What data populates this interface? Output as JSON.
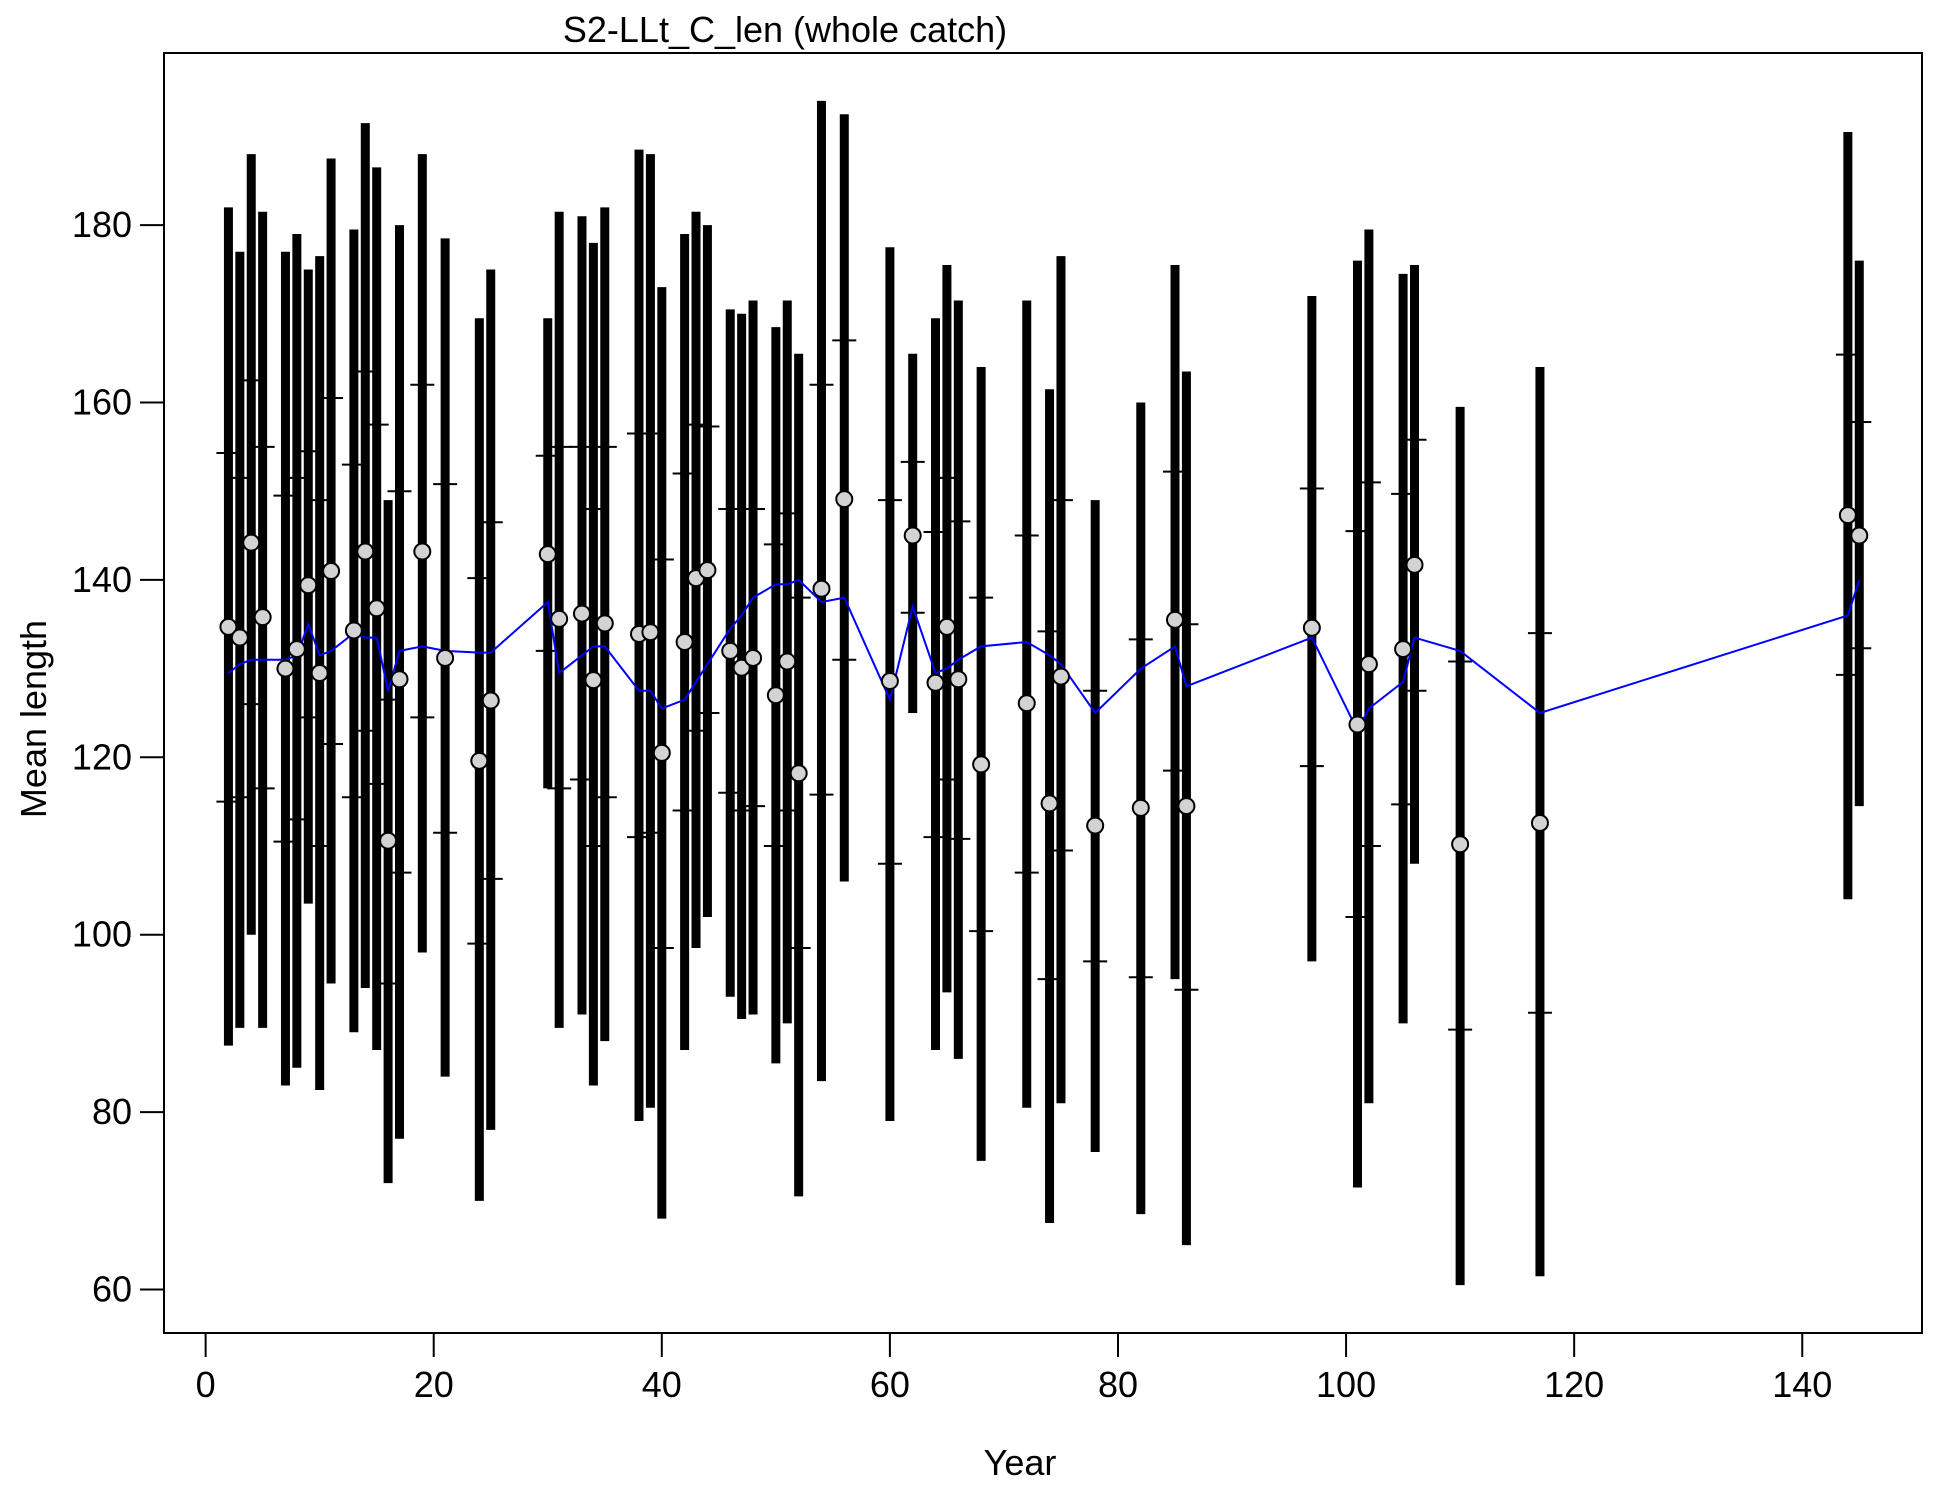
{
  "chart_data": {
    "type": "interval",
    "title": "S2-LLt_C_len (whole catch)",
    "xlabel": "Year",
    "ylabel": "Mean length",
    "x": [
      2,
      3,
      4,
      5,
      7,
      8,
      9,
      10,
      11,
      13,
      14,
      15,
      16,
      17,
      19,
      21,
      24,
      25,
      30,
      31,
      33,
      34,
      35,
      38,
      39,
      40,
      42,
      43,
      44,
      46,
      47,
      48,
      50,
      51,
      52,
      54,
      56,
      60,
      62,
      64,
      65,
      66,
      68,
      72,
      74,
      75,
      78,
      82,
      85,
      86,
      97,
      101,
      102,
      105,
      106,
      110,
      117,
      144,
      145
    ],
    "observed": [
      134.7,
      133.5,
      144.2,
      135.8,
      130,
      132.2,
      139.4,
      129.5,
      141,
      134.3,
      143.2,
      136.8,
      110.6,
      128.8,
      143.2,
      131.2,
      119.6,
      126.4,
      142.9,
      135.6,
      136.2,
      128.7,
      135.1,
      133.9,
      134.1,
      120.5,
      133,
      140.2,
      141.1,
      132,
      130.1,
      131.2,
      127,
      130.8,
      118.2,
      139,
      149.1,
      128.6,
      145,
      128.4,
      134.7,
      128.8,
      119.2,
      126.1,
      114.8,
      129.1,
      112.3,
      114.3,
      135.5,
      114.5,
      134.6,
      123.7,
      130.5,
      132.2,
      141.7,
      110.2,
      112.6,
      147.3,
      145
    ],
    "expected": [
      129.5,
      130.5,
      131,
      131,
      131,
      131.5,
      135,
      131.5,
      132,
      134,
      133.5,
      133.5,
      127.5,
      132,
      132.5,
      132,
      131.8,
      131.8,
      137.5,
      129.5,
      131.5,
      132.5,
      132.5,
      127.5,
      127.5,
      125.5,
      126.5,
      128.5,
      130.5,
      134.5,
      136,
      138,
      139.5,
      139.5,
      140,
      137.5,
      138,
      126.5,
      137,
      129.5,
      130,
      131,
      132.5,
      133,
      131.5,
      130.5,
      125,
      130,
      132.5,
      128,
      133.5,
      123,
      125.5,
      128.5,
      133.5,
      132,
      125,
      136,
      140
    ],
    "outer_lo": [
      87.5,
      89.5,
      100,
      89.5,
      83,
      85,
      103.5,
      82.5,
      94.5,
      89,
      94,
      87,
      72,
      77,
      98,
      84,
      70,
      78,
      116.5,
      89.5,
      91,
      83,
      88,
      79,
      80.5,
      68,
      87,
      98.5,
      102,
      93,
      90.5,
      91,
      85.5,
      90,
      70.5,
      83.5,
      106,
      79,
      125,
      87,
      93.5,
      86,
      74.5,
      80.5,
      67.5,
      81,
      75.5,
      68.5,
      95,
      65,
      97,
      71.5,
      81,
      90,
      108,
      60.5,
      61.5,
      104,
      114.5
    ],
    "outer_hi": [
      182,
      177,
      188,
      181.5,
      177,
      179,
      175,
      176.5,
      187.5,
      179.5,
      191.5,
      186.5,
      149,
      180,
      188,
      178.5,
      169.5,
      175,
      169.5,
      181.5,
      181,
      178,
      182,
      188.5,
      188,
      173,
      179,
      181.5,
      180,
      170.5,
      170,
      171.5,
      168.5,
      171.5,
      165.5,
      194,
      192.5,
      177.5,
      165.5,
      169.5,
      175.5,
      171.5,
      164,
      171.5,
      161.5,
      176.5,
      149,
      160,
      175.5,
      163.5,
      172,
      176,
      179.5,
      174.5,
      175.5,
      159.5,
      164,
      190.5,
      176
    ],
    "inner_lo": [
      115,
      115.5,
      126,
      116.5,
      110.5,
      113,
      124.5,
      110,
      121.5,
      115.5,
      123,
      117,
      94.5,
      107,
      124.5,
      111.5,
      99,
      106.3,
      132,
      116.5,
      117.5,
      110,
      115.5,
      111,
      111.5,
      98.5,
      114,
      123,
      125,
      116,
      114,
      114.5,
      110,
      114,
      98.5,
      115.8,
      131,
      108,
      136.3,
      111,
      117.5,
      110.8,
      100.4,
      107,
      95,
      109.5,
      97,
      95.2,
      118.5,
      93.8,
      119,
      102,
      110,
      114.7,
      127.5,
      89.3,
      91.2,
      129.3,
      132.3
    ],
    "inner_hi": [
      154.3,
      151.5,
      162.5,
      155,
      149.5,
      151.5,
      154.5,
      149,
      160.5,
      153,
      163.5,
      157.5,
      126.5,
      150,
      162,
      150.8,
      140.2,
      146.5,
      154,
      155,
      155,
      148,
      155,
      156.5,
      156.5,
      142.3,
      152,
      157.5,
      157.3,
      148,
      148,
      148,
      144,
      147.5,
      138,
      162,
      167,
      149,
      153.3,
      145.4,
      151.5,
      146.6,
      138,
      145,
      134.2,
      149,
      127.5,
      133.3,
      152.2,
      135,
      150.3,
      145.5,
      151,
      149.7,
      155.8,
      130.8,
      134,
      165.4,
      157.8
    ],
    "line_color": "#0000ff",
    "bar_color": "#000000",
    "point_color": "#d3d3d3",
    "xlim": [
      -3.65,
      150.5
    ],
    "ylim": [
      55.1,
      199.4
    ],
    "xticks": [
      0,
      20,
      40,
      60,
      80,
      100,
      120,
      140
    ],
    "yticks": [
      60,
      80,
      100,
      120,
      140,
      160,
      180
    ]
  }
}
